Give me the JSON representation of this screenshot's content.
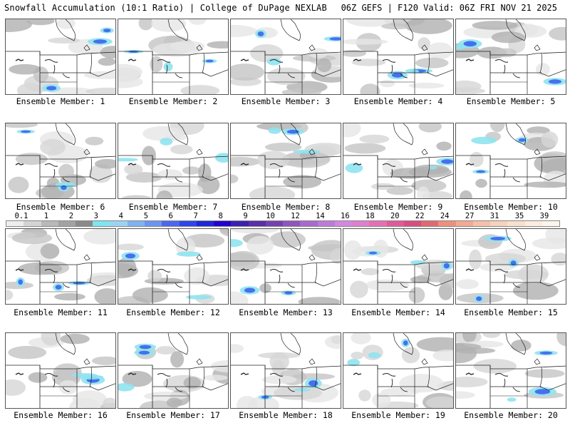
{
  "header": {
    "title": "Snowfall Accumulation (10:1 Ratio) | College of DuPage NEXLAB",
    "run_info": "06Z GEFS | F120 Valid: 06Z FRI NOV 21 2025"
  },
  "colorbar": {
    "labels": [
      "0.1",
      "1",
      "2",
      "3",
      "4",
      "5",
      "6",
      "7",
      "8",
      "9",
      "10",
      "12",
      "14",
      "16",
      "18",
      "20",
      "22",
      "24",
      "27",
      "31",
      "35",
      "39"
    ],
    "colors": [
      "#eeeeee",
      "#d4d4d4",
      "#b9b9b9",
      "#a2a2a2",
      "#8a8a8a",
      "#7fe5ef",
      "#9cd3f5",
      "#7fb2f0",
      "#6d94f0",
      "#4a67ee",
      "#2f45e8",
      "#1f26d6",
      "#2200cc",
      "#3c1fb0",
      "#5a2fa6",
      "#7440b0",
      "#8f55bf",
      "#a76acf",
      "#bd7ad6",
      "#d487de",
      "#e07fcf",
      "#e46fb6",
      "#e05a9a",
      "#d84c80",
      "#e06a70",
      "#ee8f7e",
      "#f2aa94",
      "#f5c0a9",
      "#f7d2bc",
      "#f9e0cd",
      "#fbecdf",
      "#fdf5ec"
    ]
  },
  "panels": [
    {
      "label": "Ensemble Member: 1"
    },
    {
      "label": "Ensemble Member: 2"
    },
    {
      "label": "Ensemble Member: 3"
    },
    {
      "label": "Ensemble Member: 4"
    },
    {
      "label": "Ensemble Member: 5"
    },
    {
      "label": "Ensemble Member: 6"
    },
    {
      "label": "Ensemble Member: 7"
    },
    {
      "label": "Ensemble Member: 8"
    },
    {
      "label": "Ensemble Member: 9"
    },
    {
      "label": "Ensemble Member: 10"
    },
    {
      "label": "Ensemble Member: 11"
    },
    {
      "label": "Ensemble Member: 12"
    },
    {
      "label": "Ensemble Member: 13"
    },
    {
      "label": "Ensemble Member: 14"
    },
    {
      "label": "Ensemble Member: 15"
    },
    {
      "label": "Ensemble Member: 16"
    },
    {
      "label": "Ensemble Member: 17"
    },
    {
      "label": "Ensemble Member: 18"
    },
    {
      "label": "Ensemble Member: 19"
    },
    {
      "label": "Ensemble Member: 20"
    }
  ]
}
